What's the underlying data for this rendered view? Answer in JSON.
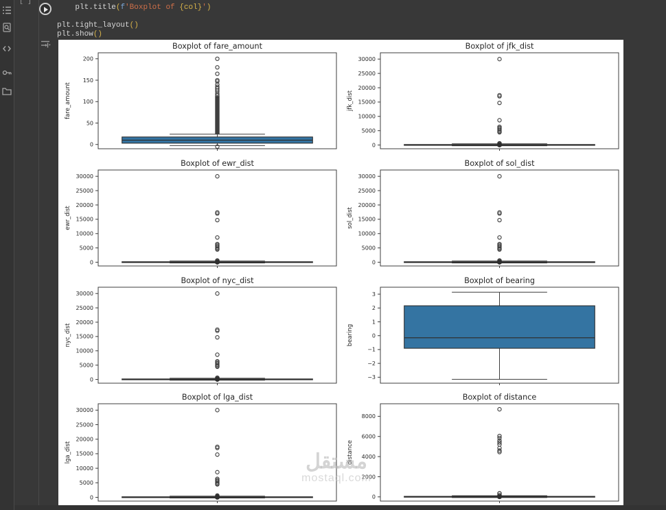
{
  "app": {
    "kind": "notebook",
    "colors": {
      "page_bg": "#383838",
      "rail_bg": "#333333",
      "figure_bg": "#ffffff",
      "box_fill": "#3474a2",
      "box_edge": "#2f2f2f",
      "whisker": "#3c3c3c",
      "axis_text": "#262626",
      "code_plain": "#d6d6d6",
      "code_string": "#ce6f49",
      "code_paren": "#d9b44a"
    }
  },
  "sidebar": {
    "icons": [
      {
        "name": "table-of-contents-icon"
      },
      {
        "name": "find-in-page-icon"
      },
      {
        "name": "code-snippets-icon"
      },
      {
        "name": "secrets-key-icon"
      },
      {
        "name": "files-folder-icon"
      }
    ]
  },
  "cell": {
    "exec_indicator": "[ ]",
    "code_lines": [
      {
        "segments": [
          {
            "t": "    plt.title",
            "c": "plain"
          },
          {
            "t": "(",
            "c": "paren"
          },
          {
            "t": "f",
            "c": "fprefix"
          },
          {
            "t": "'Boxplot of ",
            "c": "string"
          },
          {
            "t": "{col}",
            "c": "brace"
          },
          {
            "t": "'",
            "c": "string"
          },
          {
            "t": ")",
            "c": "paren"
          }
        ]
      },
      {
        "segments": []
      },
      {
        "segments": [
          {
            "t": "plt.tight_layout",
            "c": "plain"
          },
          {
            "t": "()",
            "c": "paren"
          }
        ]
      },
      {
        "segments": [
          {
            "t": "plt.show",
            "c": "plain"
          },
          {
            "t": "()",
            "c": "paren"
          }
        ]
      }
    ]
  },
  "watermark": {
    "arabic": "مستقل",
    "latin": "mostaql.com"
  },
  "chart_data": [
    {
      "type": "boxplot",
      "title": "Boxplot of fare_amount",
      "ylabel": "fare_amount",
      "yticks": [
        0,
        50,
        100,
        150,
        200
      ],
      "ylim": [
        -10,
        214
      ],
      "q1": 3,
      "median": 10,
      "q3": 17.5,
      "whisker_low": -2.5,
      "whisker_high": 24,
      "outliers": [
        200,
        180,
        165,
        150,
        147,
        140,
        135,
        131,
        127,
        123,
        118,
        114,
        -5
      ],
      "dense_range": [
        24,
        113
      ],
      "blob": []
    },
    {
      "type": "boxplot",
      "title": "Boxplot of jfk_dist",
      "ylabel": "jfk_dist",
      "yticks": [
        0,
        5000,
        10000,
        15000,
        20000,
        25000,
        30000
      ],
      "ylim": [
        -1300,
        32200
      ],
      "q1": 0,
      "median": 60,
      "q3": 180,
      "whisker_low": -250,
      "whisker_high": 420,
      "outliers": [
        30000,
        17400,
        17000,
        14700,
        8650,
        6350,
        5950,
        5600,
        5150,
        4750,
        4450
      ],
      "dense_range": null,
      "blob": [
        600,
        300,
        50
      ]
    },
    {
      "type": "boxplot",
      "title": "Boxplot of ewr_dist",
      "ylabel": "ewr_dist",
      "yticks": [
        0,
        5000,
        10000,
        15000,
        20000,
        25000,
        30000
      ],
      "ylim": [
        -1300,
        32200
      ],
      "q1": 0,
      "median": 60,
      "q3": 180,
      "whisker_low": -250,
      "whisker_high": 420,
      "outliers": [
        30000,
        17400,
        17000,
        14700,
        8650,
        6350,
        5950,
        5600,
        5150,
        4750,
        4450
      ],
      "dense_range": null,
      "blob": [
        600,
        300,
        50
      ]
    },
    {
      "type": "boxplot",
      "title": "Boxplot of sol_dist",
      "ylabel": "sol_dist",
      "yticks": [
        0,
        5000,
        10000,
        15000,
        20000,
        25000,
        30000
      ],
      "ylim": [
        -1300,
        32200
      ],
      "q1": 0,
      "median": 60,
      "q3": 180,
      "whisker_low": -250,
      "whisker_high": 420,
      "outliers": [
        30000,
        17400,
        17000,
        14700,
        8650,
        6350,
        5950,
        5600,
        5150,
        4750,
        4450
      ],
      "dense_range": null,
      "blob": [
        600,
        300,
        50
      ]
    },
    {
      "type": "boxplot",
      "title": "Boxplot of nyc_dist",
      "ylabel": "nyc_dist",
      "yticks": [
        0,
        5000,
        10000,
        15000,
        20000,
        25000,
        30000
      ],
      "ylim": [
        -1300,
        32200
      ],
      "q1": 0,
      "median": 60,
      "q3": 180,
      "whisker_low": -250,
      "whisker_high": 420,
      "outliers": [
        30000,
        17400,
        17000,
        14700,
        8650,
        6350,
        5950,
        5600,
        5150,
        4750,
        4450
      ],
      "dense_range": null,
      "blob": [
        600,
        300,
        50
      ]
    },
    {
      "type": "boxplot",
      "title": "Boxplot of bearing",
      "ylabel": "bearing",
      "yticks": [
        3,
        2,
        1,
        0,
        -1,
        -2,
        -3
      ],
      "ylim": [
        -3.43,
        3.5
      ],
      "q1": -0.91,
      "median": -0.15,
      "q3": 2.16,
      "whisker_low": -3.15,
      "whisker_high": 3.14,
      "outliers": [],
      "dense_range": null,
      "blob": []
    },
    {
      "type": "boxplot",
      "title": "Boxplot of lga_dist",
      "ylabel": "lga_dist",
      "yticks": [
        0,
        5000,
        10000,
        15000,
        20000,
        25000,
        30000
      ],
      "ylim": [
        -1300,
        32200
      ],
      "q1": 0,
      "median": 60,
      "q3": 180,
      "whisker_low": -250,
      "whisker_high": 420,
      "outliers": [
        30000,
        17400,
        17000,
        14700,
        8650,
        6350,
        5950,
        5600,
        5150,
        4750,
        4450
      ],
      "dense_range": null,
      "blob": [
        600,
        300,
        50
      ]
    },
    {
      "type": "boxplot",
      "title": "Boxplot of distance",
      "ylabel": "distance",
      "yticks": [
        0,
        2000,
        4000,
        6000,
        8000
      ],
      "ylim": [
        -420,
        9250
      ],
      "q1": 0,
      "median": 15,
      "q3": 50,
      "whisker_low": -70,
      "whisker_high": 120,
      "outliers": [
        8700,
        6050,
        5850,
        5600,
        5400,
        5200,
        4850,
        4600,
        4450
      ],
      "dense_range": null,
      "blob": [
        350,
        150,
        20
      ]
    }
  ]
}
